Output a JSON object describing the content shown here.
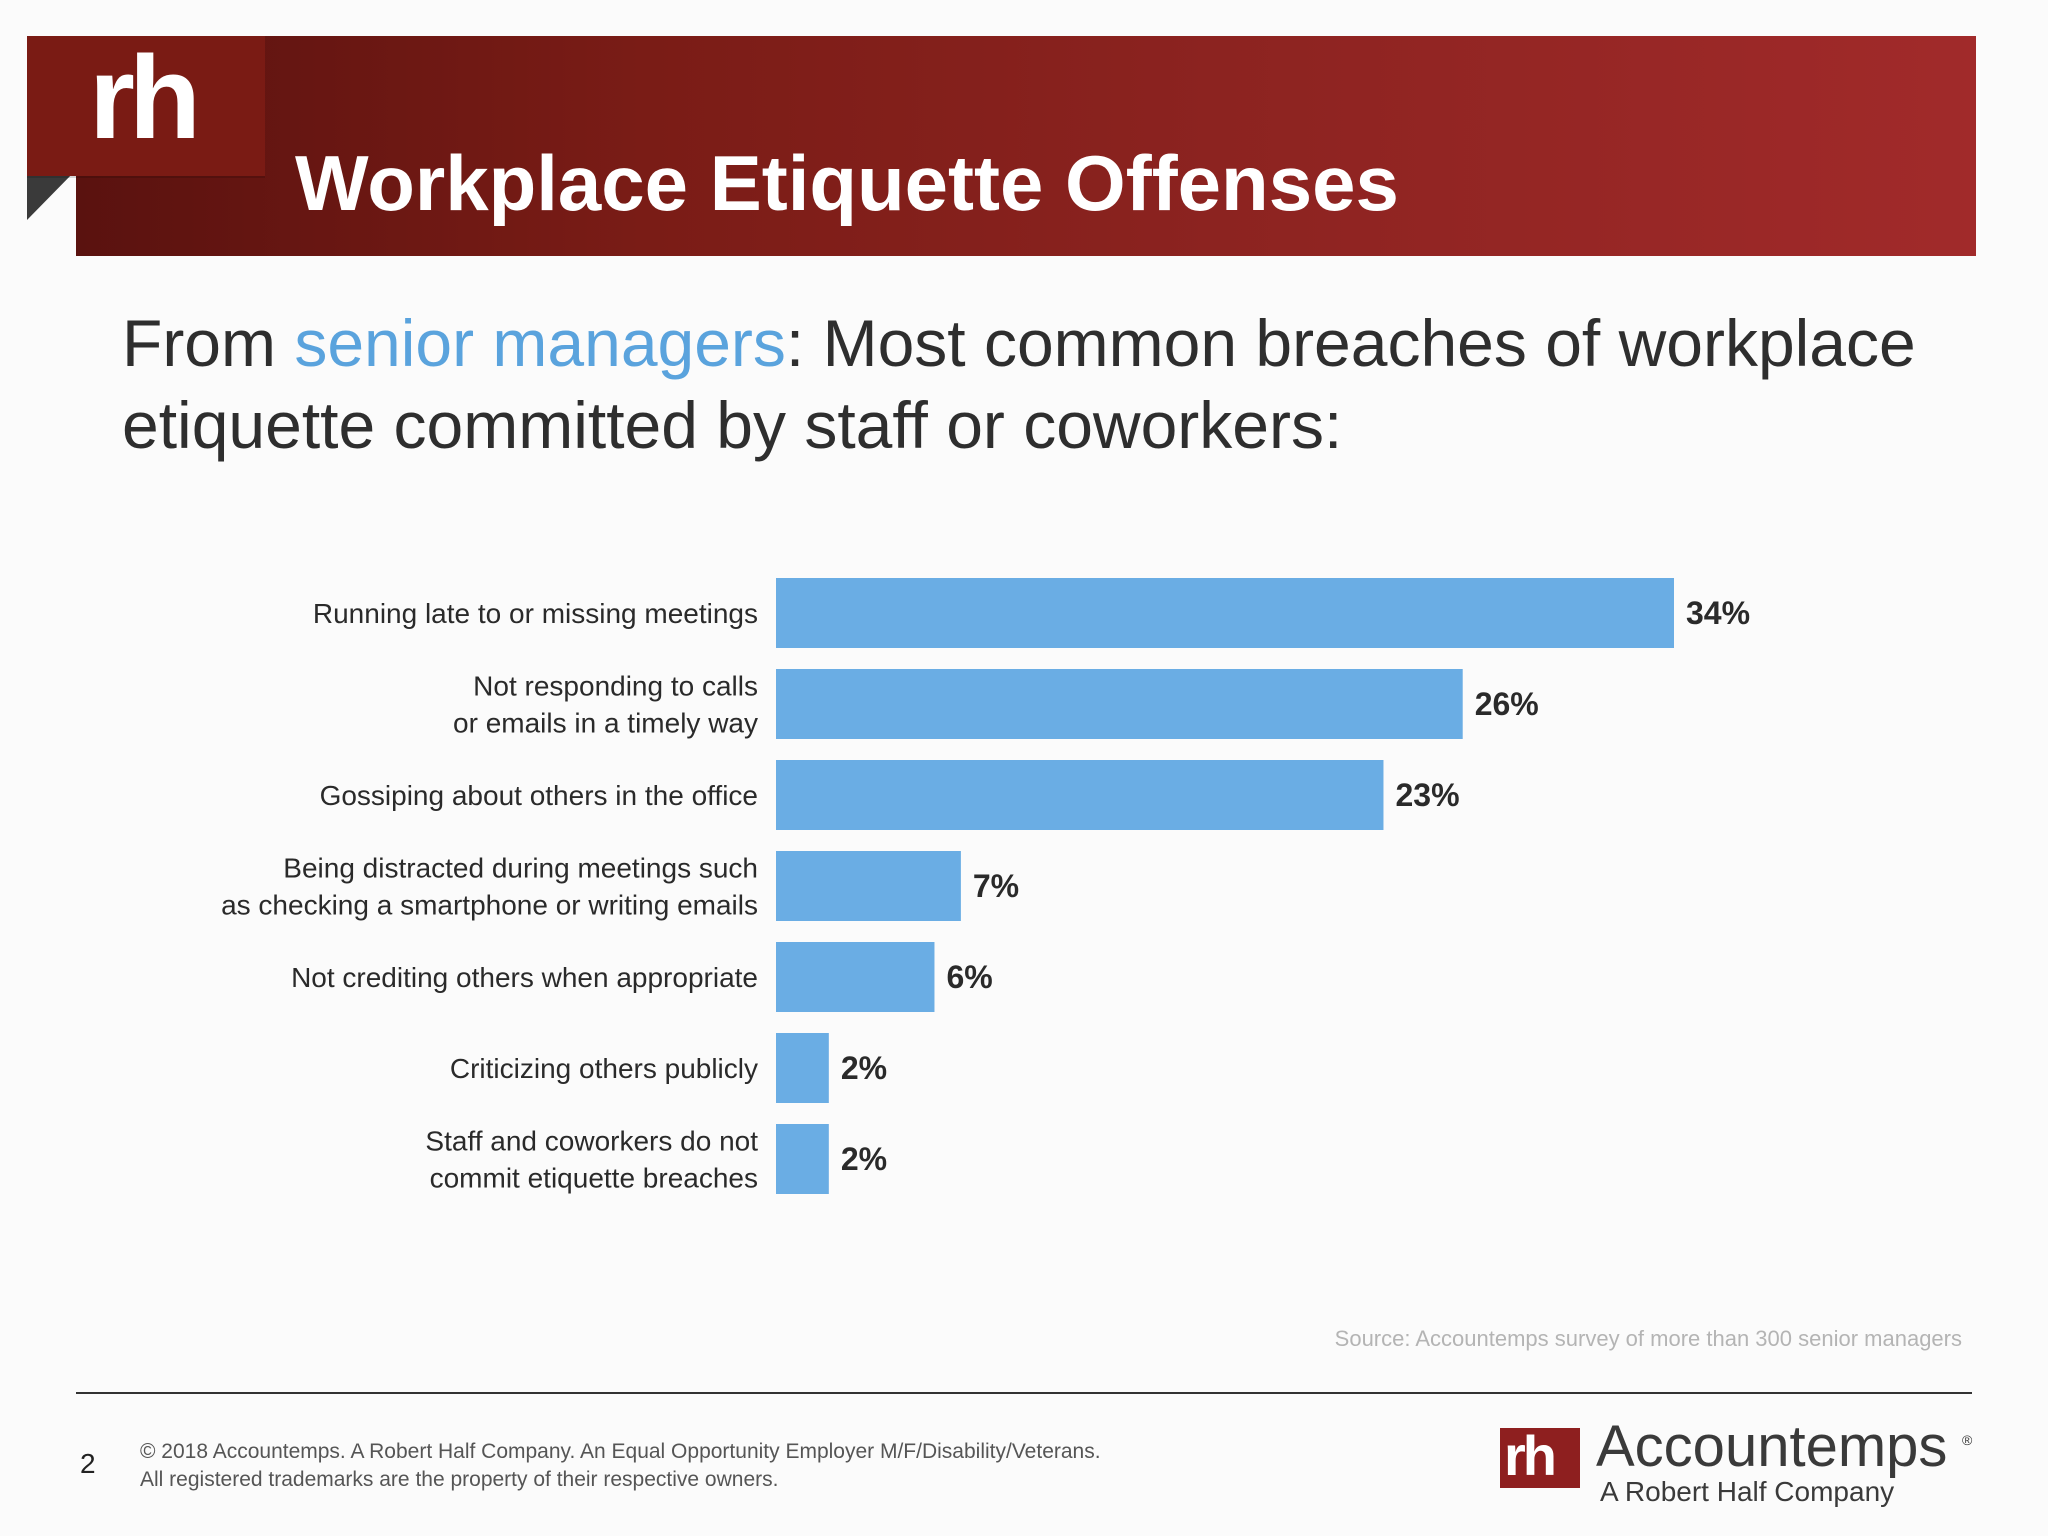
{
  "header": {
    "logo_text": "rh",
    "title": "Workplace Etiquette Offenses"
  },
  "subtitle": {
    "prefix": "From ",
    "highlight": "senior managers",
    "rest": ": Most common breaches of workplace etiquette committed by staff or coworkers:"
  },
  "chart_data": {
    "type": "bar",
    "orientation": "horizontal",
    "categories": [
      [
        "Running late to or missing meetings"
      ],
      [
        "Not responding to calls",
        "or emails in a timely way"
      ],
      [
        "Gossiping about others in the office"
      ],
      [
        "Being distracted during meetings such",
        "as checking a smartphone or writing emails"
      ],
      [
        "Not crediting others when appropriate"
      ],
      [
        "Criticizing others publicly"
      ],
      [
        "Staff and coworkers do not",
        "commit etiquette breaches"
      ]
    ],
    "values": [
      34,
      26,
      23,
      7,
      6,
      2,
      2
    ],
    "value_labels": [
      "34%",
      "26%",
      "23%",
      "7%",
      "6%",
      "2%",
      "2%"
    ],
    "xlim": [
      0,
      34
    ],
    "bar_color": "#6aade4",
    "grid": false,
    "legend": "none"
  },
  "source": "Source: Accountemps survey of more than 300 senior managers",
  "footer": {
    "page_number": "2",
    "copyright_line1": "© 2018 Accountemps. A Robert Half Company. An Equal Opportunity Employer M/F/Disability/Veterans.",
    "copyright_line2": "All registered trademarks are the property of their respective owners.",
    "brand_mark": "rh",
    "brand_name": "Accountemps",
    "brand_reg": "®",
    "brand_sub": "A Robert Half Company"
  },
  "colors": {
    "banner": "#8c2320",
    "accent": "#5aa3dd",
    "bar": "#6aade4"
  }
}
